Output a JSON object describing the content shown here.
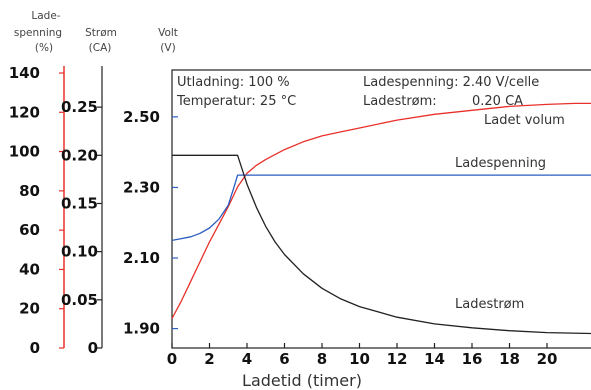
{
  "chart_data": {
    "type": "line",
    "xlabel": "Ladetid (timer)",
    "x_ticks": [
      0,
      2,
      4,
      6,
      8,
      10,
      12,
      14,
      16,
      18,
      20
    ],
    "xlim": [
      0,
      22.4
    ],
    "axes": [
      {
        "id": "volum",
        "label_lines": [
          "Lade-",
          "spenning",
          "(%)"
        ],
        "ticks": [
          "0",
          "20",
          "40",
          "60",
          "80",
          "100",
          "120",
          "140"
        ],
        "tick_values": [
          0,
          20,
          40,
          60,
          80,
          100,
          120,
          140
        ],
        "ylim": [
          0,
          140
        ],
        "color": "#e05050"
      },
      {
        "id": "strom",
        "label_lines": [
          "Strøm",
          "(CA)"
        ],
        "ticks": [
          "0",
          "0.05",
          "0.10",
          "0.15",
          "0.20",
          "0.25"
        ],
        "tick_values": [
          0,
          0.05,
          0.1,
          0.15,
          0.2,
          0.25
        ],
        "ylim": [
          0,
          0.2875
        ],
        "color": "#222222"
      },
      {
        "id": "volt",
        "label_lines": [
          "Volt",
          "(V)"
        ],
        "ticks": [
          "1.90",
          "2.10",
          "2.30",
          "2.50"
        ],
        "tick_values": [
          1.9,
          2.1,
          2.3,
          2.5
        ],
        "ylim": [
          1.845,
          2.63
        ],
        "color": "#3060c0"
      }
    ],
    "annotations": {
      "utladning": "Utladning: 100 %",
      "temperatur": "Temperatur: 25 °C",
      "ladespenning_setting": "Ladespenning: 2.40 V/celle",
      "ladestrom_label": "Ladestrøm:",
      "ladestrom_value": "0.20 CA"
    },
    "series": [
      {
        "name": "Ladet volum",
        "axis": "volum",
        "color": "#e8302a",
        "x": [
          0,
          0.5,
          1,
          1.5,
          2,
          2.5,
          3,
          3.5,
          4,
          4.5,
          5,
          6,
          7,
          8,
          9,
          10,
          12,
          14,
          16,
          18,
          20,
          21.5,
          22.4
        ],
        "y": [
          15,
          24,
          34,
          44,
          54,
          63,
          72,
          82,
          89,
          93,
          96,
          101,
          105,
          108,
          110,
          112,
          116,
          119,
          121,
          123,
          124,
          124.5,
          124.5
        ]
      },
      {
        "name": "Ladespenning",
        "axis": "volt",
        "color": "#2a5cc0",
        "x": [
          0,
          0.5,
          1,
          1.5,
          2,
          2.5,
          3,
          3.3,
          3.5,
          3.7,
          4,
          6,
          10,
          15,
          20,
          22.4
        ],
        "y": [
          2.15,
          2.155,
          2.16,
          2.17,
          2.185,
          2.21,
          2.25,
          2.3,
          2.335,
          2.335,
          2.335,
          2.335,
          2.335,
          2.335,
          2.335,
          2.335
        ]
      },
      {
        "name": "Ladestrøm",
        "axis": "strom",
        "color": "#222222",
        "x": [
          0,
          3.2,
          3.5,
          4,
          4.5,
          5,
          5.5,
          6,
          7,
          8,
          9,
          10,
          12,
          14,
          16,
          18,
          20,
          22.4
        ],
        "y": [
          0.2,
          0.2,
          0.2,
          0.17,
          0.146,
          0.126,
          0.11,
          0.097,
          0.077,
          0.062,
          0.051,
          0.043,
          0.032,
          0.025,
          0.021,
          0.018,
          0.016,
          0.015
        ]
      }
    ]
  }
}
